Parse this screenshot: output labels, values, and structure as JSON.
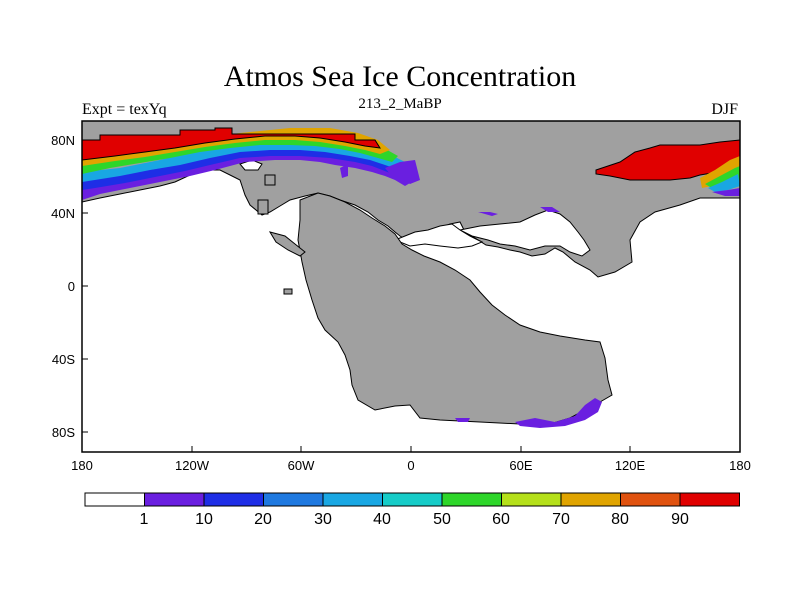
{
  "title": "Atmos Sea Ice Concentration",
  "subtitle": "213_2_MaBP",
  "left_label": "Expt = texYq",
  "right_label": "DJF",
  "colors": {
    "land": "#a0a0a0",
    "ocean": "#ffffff",
    "levels": [
      "#ffffff",
      "#6a1fe0",
      "#1e2ee6",
      "#1f79e0",
      "#19a7e3",
      "#16ccc8",
      "#2ed62a",
      "#b5e01a",
      "#e0a400",
      "#e0520f",
      "#e00000"
    ]
  },
  "x_ticks": [
    "180",
    "120W",
    "60W",
    "0",
    "60E",
    "120E",
    "180"
  ],
  "y_ticks": [
    "80N",
    "40N",
    "0",
    "40S",
    "80S"
  ],
  "colorbar_labels": [
    "1",
    "10",
    "20",
    "30",
    "40",
    "50",
    "60",
    "70",
    "80",
    "90"
  ],
  "chart_data": {
    "type": "heatmap",
    "title": "Atmos Sea Ice Concentration",
    "subtitle": "213_2_MaBP",
    "xlim": [
      -180,
      180
    ],
    "ylim": [
      -90,
      90
    ],
    "colorbar_levels": [
      1,
      10,
      20,
      30,
      40,
      50,
      60,
      70,
      80,
      90
    ]
  }
}
